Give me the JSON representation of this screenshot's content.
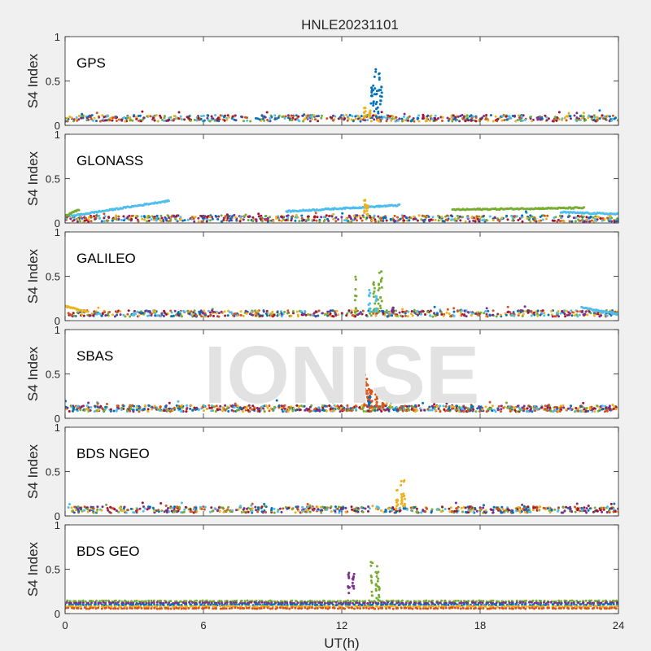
{
  "title": "HNLE20231101",
  "xlabel": "UT(h)",
  "watermark": "IONISE",
  "colors": {
    "background": "#f0f0f0",
    "axes": "#ffffff",
    "watermark": "#e2e2e2",
    "series": [
      "#0072bd",
      "#d95319",
      "#edb120",
      "#7e2f8e",
      "#77ac30",
      "#4dbeee",
      "#a2142f"
    ]
  },
  "chart_data": [
    {
      "type": "scatter",
      "panel_label": "GPS",
      "ylabel": "S4 Index",
      "xlim": [
        0,
        24
      ],
      "ylim": [
        0,
        1
      ],
      "xticks": [
        0,
        6,
        12,
        18,
        24
      ],
      "yticks": [
        0,
        0.5,
        1
      ],
      "xtick_labels": [
        "0",
        "6",
        "12",
        "18",
        "24"
      ],
      "ytick_labels": [
        "0",
        "0.5",
        "1"
      ],
      "grid": false,
      "baseline_s4": 0.08,
      "bursts": [
        {
          "color_index": 0,
          "x": [
            13.3,
            13.4,
            13.5,
            13.6,
            13.7
          ],
          "y_max": [
            0.45,
            0.55,
            0.65,
            0.6,
            0.45
          ]
        },
        {
          "color_index": 2,
          "x": [
            13.0,
            13.2
          ],
          "y_max": [
            0.2,
            0.18
          ]
        }
      ]
    },
    {
      "type": "scatter",
      "panel_label": "GLONASS",
      "ylabel": "S4 Index",
      "xlim": [
        0,
        24
      ],
      "ylim": [
        0,
        1
      ],
      "xticks": [
        0,
        6,
        12,
        18,
        24
      ],
      "yticks": [
        0,
        0.5,
        1
      ],
      "xtick_labels": [
        "0",
        "6",
        "12",
        "18",
        "24"
      ],
      "ytick_labels": [
        "0",
        "0.5",
        "1"
      ],
      "grid": false,
      "baseline_s4": 0.05,
      "arcs": [
        {
          "color_index": 5,
          "x": [
            0.3,
            4.5
          ],
          "y": [
            0.08,
            0.25
          ]
        },
        {
          "color_index": 5,
          "x": [
            9.6,
            14.5
          ],
          "y": [
            0.13,
            0.2
          ]
        },
        {
          "color_index": 4,
          "x": [
            16.8,
            22.5
          ],
          "y": [
            0.15,
            0.17
          ]
        },
        {
          "color_index": 5,
          "x": [
            21.5,
            24
          ],
          "y": [
            0.12,
            0.1
          ]
        },
        {
          "color_index": 4,
          "x": [
            0,
            0.6
          ],
          "y": [
            0.08,
            0.15
          ]
        }
      ],
      "bursts": [
        {
          "color_index": 2,
          "x": [
            13.0,
            13.1
          ],
          "y_max": [
            0.27,
            0.2
          ]
        }
      ]
    },
    {
      "type": "scatter",
      "panel_label": "GALILEO",
      "ylabel": "S4 Index",
      "xlim": [
        0,
        24
      ],
      "ylim": [
        0,
        1
      ],
      "xticks": [
        0,
        6,
        12,
        18,
        24
      ],
      "yticks": [
        0,
        0.5,
        1
      ],
      "xtick_labels": [
        "0",
        "6",
        "12",
        "18",
        "24"
      ],
      "ytick_labels": [
        "0",
        "0.5",
        "1"
      ],
      "grid": false,
      "baseline_s4": 0.08,
      "arcs": [
        {
          "color_index": 5,
          "x": [
            22.4,
            24
          ],
          "y": [
            0.15,
            0.07
          ]
        },
        {
          "color_index": 2,
          "x": [
            0,
            1.0
          ],
          "y": [
            0.16,
            0.1
          ]
        }
      ],
      "bursts": [
        {
          "color_index": 4,
          "x": [
            12.6,
            13.4,
            13.6,
            13.7
          ],
          "y_max": [
            0.5,
            0.45,
            0.55,
            0.58
          ]
        },
        {
          "color_index": 5,
          "x": [
            13.2,
            13.5
          ],
          "y_max": [
            0.35,
            0.3
          ]
        },
        {
          "color_index": 3,
          "x": [
            14.2
          ],
          "y_max": [
            0.15
          ]
        }
      ]
    },
    {
      "type": "scatter",
      "panel_label": "SBAS",
      "ylabel": "S4 Index",
      "xlim": [
        0,
        24
      ],
      "ylim": [
        0,
        1
      ],
      "xticks": [
        0,
        6,
        12,
        18,
        24
      ],
      "yticks": [
        0,
        0.5,
        1
      ],
      "xtick_labels": [
        "0",
        "6",
        "12",
        "18",
        "24"
      ],
      "ytick_labels": [
        "0",
        "0.5",
        "1"
      ],
      "grid": false,
      "baseline_s4": 0.11,
      "bursts": [
        {
          "color_index": 1,
          "x": [
            13.0,
            13.1,
            13.2,
            13.3,
            13.5,
            13.8
          ],
          "y_max": [
            0.5,
            0.45,
            0.38,
            0.33,
            0.27,
            0.22
          ]
        },
        {
          "color_index": 0,
          "x": [
            13.2
          ],
          "y_max": [
            0.3
          ]
        }
      ]
    },
    {
      "type": "scatter",
      "panel_label": "BDS NGEO",
      "ylabel": "S4 Index",
      "xlim": [
        0,
        24
      ],
      "ylim": [
        0,
        1
      ],
      "xticks": [
        0,
        6,
        12,
        18,
        24
      ],
      "yticks": [
        0,
        0.5,
        1
      ],
      "xtick_labels": [
        "0",
        "6",
        "12",
        "18",
        "24"
      ],
      "ytick_labels": [
        "0",
        "0.5",
        "1"
      ],
      "grid": false,
      "baseline_s4": 0.07,
      "bursts": [
        {
          "color_index": 2,
          "x": [
            14.4,
            14.6,
            14.7
          ],
          "y_max": [
            0.35,
            0.4,
            0.42
          ]
        }
      ]
    },
    {
      "type": "scatter",
      "panel_label": "BDS GEO",
      "ylabel": "S4 Index",
      "xlim": [
        0,
        24
      ],
      "ylim": [
        0,
        1
      ],
      "xticks": [
        0,
        6,
        12,
        18,
        24
      ],
      "yticks": [
        0,
        0.5,
        1
      ],
      "xtick_labels": [
        "0",
        "6",
        "12",
        "18",
        "24"
      ],
      "ytick_labels": [
        "0",
        "0.5",
        "1"
      ],
      "grid": false,
      "flat_series": [
        {
          "color_index": 4,
          "y": 0.14
        },
        {
          "color_index": 3,
          "y": 0.12
        },
        {
          "color_index": 0,
          "y": 0.1
        },
        {
          "color_index": 2,
          "y": 0.08
        },
        {
          "color_index": 1,
          "y": 0.06
        }
      ],
      "bursts": [
        {
          "color_index": 3,
          "x": [
            12.3,
            12.5
          ],
          "y_max": [
            0.5,
            0.45
          ]
        },
        {
          "color_index": 4,
          "x": [
            13.3,
            13.5,
            13.6
          ],
          "y_max": [
            0.6,
            0.55,
            0.5
          ]
        }
      ]
    }
  ]
}
